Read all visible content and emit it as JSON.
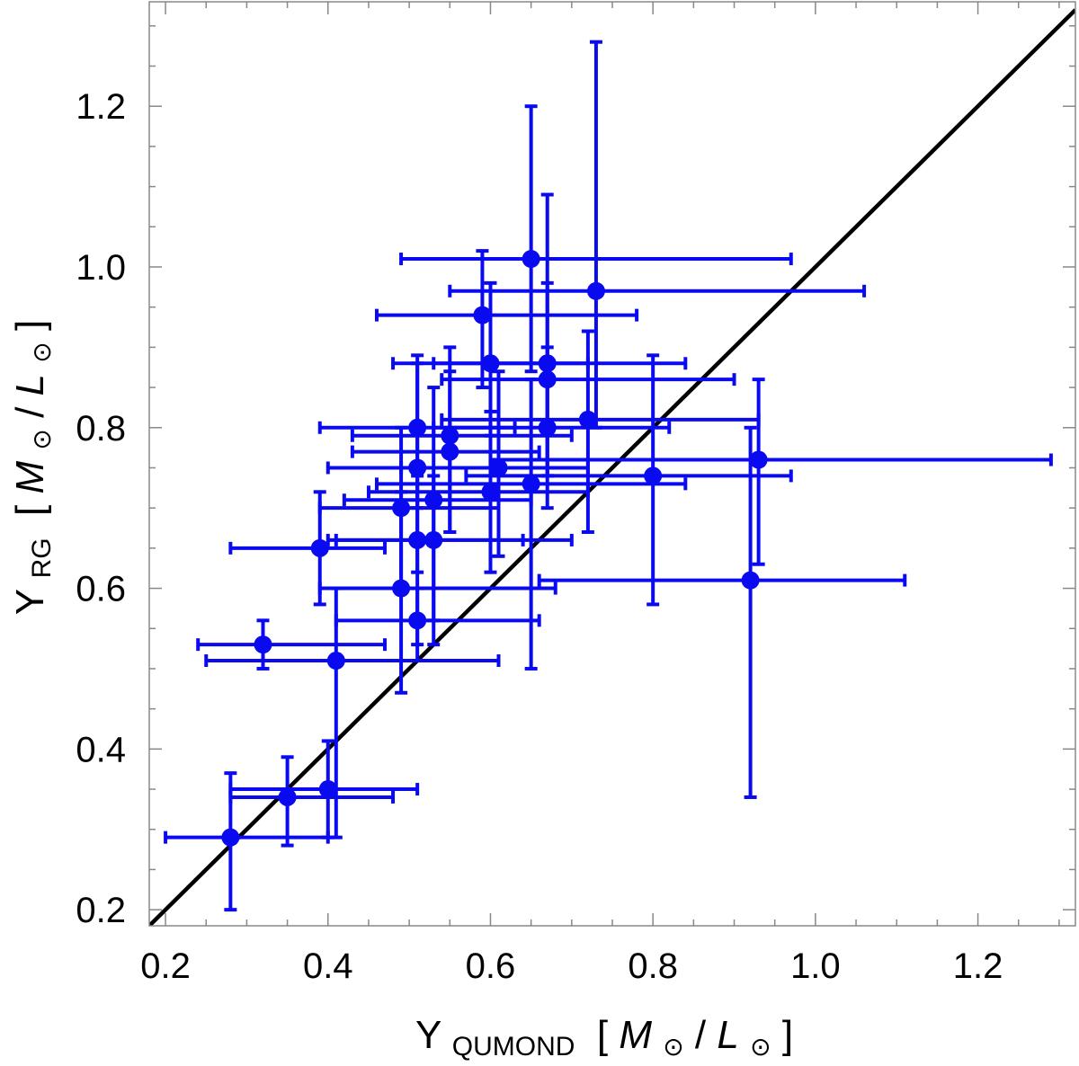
{
  "chart_data": {
    "type": "scatter",
    "title": "",
    "xlabel": {
      "symbol": "Υ",
      "subscript": "QUMOND",
      "unit_prefix": " [",
      "unit_num": "M",
      "unit_sep": "/",
      "unit_den": "L",
      "unit_suffix": "]",
      "sun": "⊙"
    },
    "ylabel": {
      "symbol": "Υ",
      "subscript": "RG",
      "unit_prefix": " [",
      "unit_num": "M",
      "unit_sep": "/",
      "unit_den": "L",
      "unit_suffix": "]",
      "sun": "⊙"
    },
    "xlim": [
      0.18,
      1.32
    ],
    "ylim": [
      0.18,
      1.33
    ],
    "xticks": [
      0.2,
      0.4,
      0.6,
      0.8,
      1.0,
      1.2
    ],
    "xtick_labels": [
      "0.2",
      "0.4",
      "0.6",
      "0.8",
      "1.0",
      "1.2"
    ],
    "yticks": [
      0.2,
      0.4,
      0.6,
      0.8,
      1.0,
      1.2
    ],
    "ytick_labels": [
      "0.2",
      "0.4",
      "0.6",
      "0.8",
      "1.0",
      "1.2"
    ],
    "grid": false,
    "legend": "none",
    "point_color": "#0a0af0",
    "line_color": "#000000",
    "reference_line": {
      "label": "",
      "x": [
        0.18,
        1.32
      ],
      "y": [
        0.18,
        1.32
      ]
    },
    "series": [
      {
        "points": [
          {
            "x": 0.28,
            "y": 0.29,
            "xlo": 0.2,
            "xhi": 0.4,
            "ylo": 0.2,
            "yhi": 0.37
          },
          {
            "x": 0.35,
            "y": 0.34,
            "xlo": 0.28,
            "xhi": 0.48,
            "ylo": 0.28,
            "yhi": 0.39
          },
          {
            "x": 0.4,
            "y": 0.35,
            "xlo": 0.28,
            "xhi": 0.51,
            "ylo": 0.29,
            "yhi": 0.41
          },
          {
            "x": 0.32,
            "y": 0.53,
            "xlo": 0.24,
            "xhi": 0.47,
            "ylo": 0.5,
            "yhi": 0.56
          },
          {
            "x": 0.41,
            "y": 0.51,
            "xlo": 0.25,
            "xhi": 0.61,
            "ylo": 0.29,
            "yhi": 0.6
          },
          {
            "x": 0.39,
            "y": 0.65,
            "xlo": 0.28,
            "xhi": 0.47,
            "ylo": 0.58,
            "yhi": 0.72
          },
          {
            "x": 0.49,
            "y": 0.6,
            "xlo": 0.39,
            "xhi": 0.68,
            "ylo": 0.47,
            "yhi": 0.72
          },
          {
            "x": 0.49,
            "y": 0.7,
            "xlo": 0.39,
            "xhi": 0.61,
            "ylo": 0.6,
            "yhi": 0.8
          },
          {
            "x": 0.51,
            "y": 0.56,
            "xlo": 0.41,
            "xhi": 0.66,
            "ylo": 0.51,
            "yhi": 0.6
          },
          {
            "x": 0.51,
            "y": 0.66,
            "xlo": 0.4,
            "xhi": 0.64,
            "ylo": 0.53,
            "yhi": 0.74
          },
          {
            "x": 0.53,
            "y": 0.66,
            "xlo": 0.41,
            "xhi": 0.7,
            "ylo": 0.53,
            "yhi": 0.74
          },
          {
            "x": 0.51,
            "y": 0.75,
            "xlo": 0.4,
            "xhi": 0.61,
            "ylo": 0.62,
            "yhi": 0.88
          },
          {
            "x": 0.51,
            "y": 0.8,
            "xlo": 0.39,
            "xhi": 0.63,
            "ylo": 0.7,
            "yhi": 0.89
          },
          {
            "x": 0.53,
            "y": 0.71,
            "xlo": 0.42,
            "xhi": 0.65,
            "ylo": 0.56,
            "yhi": 0.85
          },
          {
            "x": 0.55,
            "y": 0.77,
            "xlo": 0.43,
            "xhi": 0.66,
            "ylo": 0.67,
            "yhi": 0.87
          },
          {
            "x": 0.55,
            "y": 0.79,
            "xlo": 0.43,
            "xhi": 0.7,
            "ylo": 0.67,
            "yhi": 0.9
          },
          {
            "x": 0.59,
            "y": 0.94,
            "xlo": 0.46,
            "xhi": 0.78,
            "ylo": 0.85,
            "yhi": 1.02
          },
          {
            "x": 0.6,
            "y": 0.88,
            "xlo": 0.48,
            "xhi": 0.72,
            "ylo": 0.79,
            "yhi": 0.98
          },
          {
            "x": 0.6,
            "y": 0.72,
            "xlo": 0.45,
            "xhi": 0.72,
            "ylo": 0.62,
            "yhi": 0.82
          },
          {
            "x": 0.61,
            "y": 0.75,
            "xlo": 0.49,
            "xhi": 0.72,
            "ylo": 0.64,
            "yhi": 0.87
          },
          {
            "x": 0.65,
            "y": 1.01,
            "xlo": 0.49,
            "xhi": 0.97,
            "ylo": 0.87,
            "yhi": 1.2
          },
          {
            "x": 0.65,
            "y": 0.73,
            "xlo": 0.46,
            "xhi": 0.84,
            "ylo": 0.5,
            "yhi": 0.86
          },
          {
            "x": 0.67,
            "y": 0.88,
            "xlo": 0.53,
            "xhi": 0.84,
            "ylo": 0.74,
            "yhi": 1.09
          },
          {
            "x": 0.67,
            "y": 0.86,
            "xlo": 0.54,
            "xhi": 0.9,
            "ylo": 0.74,
            "yhi": 0.98
          },
          {
            "x": 0.67,
            "y": 0.8,
            "xlo": 0.53,
            "xhi": 0.82,
            "ylo": 0.7,
            "yhi": 0.9
          },
          {
            "x": 0.73,
            "y": 0.97,
            "xlo": 0.55,
            "xhi": 1.06,
            "ylo": 0.8,
            "yhi": 1.28
          },
          {
            "x": 0.72,
            "y": 0.81,
            "xlo": 0.54,
            "xhi": 0.93,
            "ylo": 0.67,
            "yhi": 0.92
          },
          {
            "x": 0.8,
            "y": 0.74,
            "xlo": 0.57,
            "xhi": 0.97,
            "ylo": 0.58,
            "yhi": 0.89
          },
          {
            "x": 0.93,
            "y": 0.76,
            "xlo": 0.6,
            "xhi": 1.29,
            "ylo": 0.63,
            "yhi": 0.86
          },
          {
            "x": 0.92,
            "y": 0.61,
            "xlo": 0.66,
            "xhi": 1.11,
            "ylo": 0.34,
            "yhi": 0.8
          }
        ]
      }
    ]
  }
}
